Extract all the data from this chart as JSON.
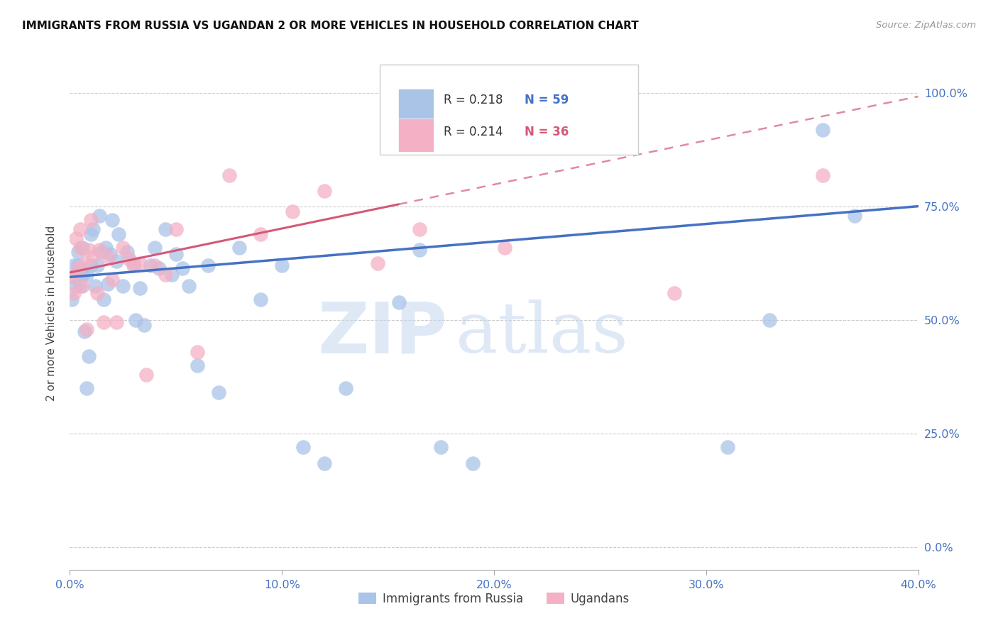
{
  "title": "IMMIGRANTS FROM RUSSIA VS UGANDAN 2 OR MORE VEHICLES IN HOUSEHOLD CORRELATION CHART",
  "source": "Source: ZipAtlas.com",
  "ylabel": "2 or more Vehicles in Household",
  "x_tick_labels": [
    "0.0%",
    "10.0%",
    "20.0%",
    "30.0%",
    "40.0%"
  ],
  "x_tick_values": [
    0.0,
    0.1,
    0.2,
    0.3,
    0.4
  ],
  "y_tick_labels": [
    "0.0%",
    "25.0%",
    "50.0%",
    "75.0%",
    "100.0%"
  ],
  "y_tick_values": [
    0.0,
    0.25,
    0.5,
    0.75,
    1.0
  ],
  "xlim": [
    0.0,
    0.4
  ],
  "ylim": [
    -0.05,
    1.08
  ],
  "legend_label_blue": "Immigrants from Russia",
  "legend_label_pink": "Ugandans",
  "R_blue": 0.218,
  "N_blue": 59,
  "R_pink": 0.214,
  "N_pink": 36,
  "scatter_blue_x": [
    0.001,
    0.001,
    0.002,
    0.003,
    0.004,
    0.004,
    0.005,
    0.005,
    0.006,
    0.006,
    0.007,
    0.008,
    0.008,
    0.009,
    0.01,
    0.01,
    0.011,
    0.012,
    0.013,
    0.014,
    0.015,
    0.016,
    0.017,
    0.018,
    0.019,
    0.02,
    0.022,
    0.023,
    0.025,
    0.027,
    0.03,
    0.031,
    0.033,
    0.035,
    0.038,
    0.04,
    0.042,
    0.045,
    0.048,
    0.05,
    0.053,
    0.056,
    0.06,
    0.065,
    0.07,
    0.08,
    0.09,
    0.1,
    0.11,
    0.12,
    0.13,
    0.155,
    0.165,
    0.175,
    0.19,
    0.31,
    0.33,
    0.355,
    0.37
  ],
  "scatter_blue_y": [
    0.595,
    0.545,
    0.62,
    0.575,
    0.62,
    0.65,
    0.61,
    0.575,
    0.6,
    0.66,
    0.475,
    0.6,
    0.35,
    0.42,
    0.62,
    0.69,
    0.7,
    0.575,
    0.62,
    0.73,
    0.65,
    0.545,
    0.66,
    0.58,
    0.645,
    0.72,
    0.63,
    0.69,
    0.575,
    0.65,
    0.625,
    0.5,
    0.57,
    0.49,
    0.62,
    0.66,
    0.615,
    0.7,
    0.6,
    0.645,
    0.615,
    0.575,
    0.4,
    0.62,
    0.34,
    0.66,
    0.545,
    0.62,
    0.22,
    0.185,
    0.35,
    0.54,
    0.655,
    0.22,
    0.185,
    0.22,
    0.5,
    0.92,
    0.73
  ],
  "scatter_pink_x": [
    0.001,
    0.002,
    0.003,
    0.004,
    0.005,
    0.005,
    0.006,
    0.007,
    0.008,
    0.009,
    0.01,
    0.011,
    0.013,
    0.014,
    0.016,
    0.018,
    0.02,
    0.022,
    0.025,
    0.028,
    0.03,
    0.033,
    0.036,
    0.04,
    0.045,
    0.05,
    0.06,
    0.075,
    0.09,
    0.105,
    0.12,
    0.145,
    0.165,
    0.205,
    0.285,
    0.355
  ],
  "scatter_pink_y": [
    0.595,
    0.56,
    0.68,
    0.615,
    0.66,
    0.7,
    0.575,
    0.625,
    0.48,
    0.655,
    0.72,
    0.64,
    0.56,
    0.655,
    0.495,
    0.64,
    0.59,
    0.495,
    0.66,
    0.635,
    0.62,
    0.625,
    0.38,
    0.62,
    0.6,
    0.7,
    0.43,
    0.82,
    0.69,
    0.74,
    0.785,
    0.625,
    0.7,
    0.66,
    0.56,
    0.82
  ],
  "watermark_zip": "ZIP",
  "watermark_atlas": "atlas",
  "color_blue_scatter": "#aac4e8",
  "color_blue_line": "#4472c4",
  "color_pink_scatter": "#f4b0c4",
  "color_pink_line": "#d45878",
  "axis_color": "#4472c4",
  "grid_color": "#cccccc",
  "title_color": "#111111",
  "source_color": "#999999"
}
